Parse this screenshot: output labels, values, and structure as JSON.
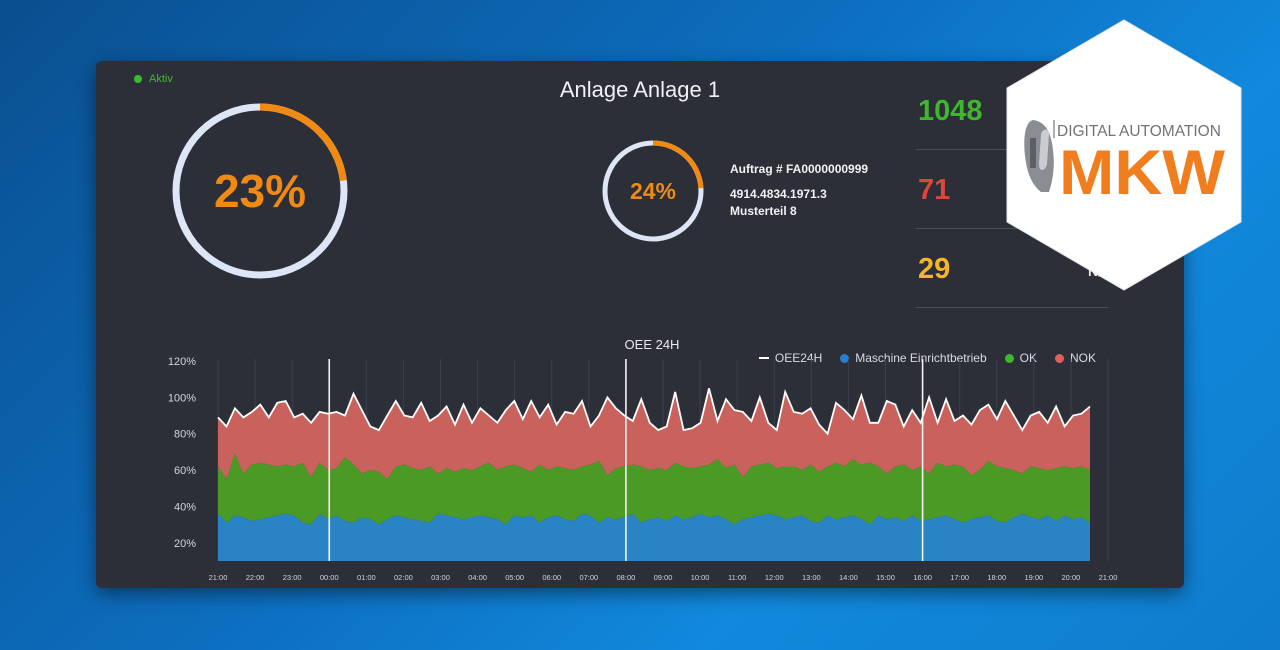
{
  "header": {
    "status_label": "Aktiv",
    "title": "Anlage Anlage 1"
  },
  "gauges": {
    "main": {
      "value": 23,
      "label": "23%"
    },
    "order": {
      "value": 24,
      "label": "24%"
    }
  },
  "order": {
    "number": "Auftrag # FA0000000999",
    "article_no": "4914.4834.1971.3",
    "article_name": "Musterteil 8"
  },
  "counts": [
    {
      "value": "1048",
      "label": "",
      "color": "#3fb62c"
    },
    {
      "value": "71",
      "label": "",
      "color": "#e2443a"
    },
    {
      "value": "29",
      "label": "N/",
      "color": "#f5b626"
    }
  ],
  "logo": {
    "top_text": "DIGITAL AUTOMATION",
    "brand": "MKW"
  },
  "colors": {
    "accent_orange": "#f08a12",
    "gauge_track": "#dde6f6",
    "ok_green": "#4a9a25",
    "nok_red": "#c9625c",
    "blue": "#2a84c4"
  },
  "chart_data": {
    "type": "area",
    "title": "OEE 24H",
    "ylim": [
      10,
      120
    ],
    "y_ticks": [
      "20%",
      "40%",
      "60%",
      "80%",
      "100%",
      "120%"
    ],
    "x_ticks": [
      "21:00",
      "22:00",
      "23:00",
      "00:00",
      "01:00",
      "02:00",
      "03:00",
      "04:00",
      "05:00",
      "06:00",
      "07:00",
      "08:00",
      "09:00",
      "10:00",
      "11:00",
      "12:00",
      "13:00",
      "14:00",
      "15:00",
      "16:00",
      "17:00",
      "18:00",
      "19:00",
      "20:00",
      "21:00"
    ],
    "legend": [
      {
        "name": "OEE24H",
        "color": "#ffffff",
        "shape": "line"
      },
      {
        "name": "Maschine Einrichtbetrieb",
        "color": "#2a7fd4",
        "shape": "dot"
      },
      {
        "name": "OK",
        "color": "#3fb62c",
        "shape": "dot"
      },
      {
        "name": "NOK",
        "color": "#e0605a",
        "shape": "dot"
      }
    ],
    "shift_markers": [
      "00:00",
      "08:00",
      "16:00"
    ],
    "series": [
      {
        "name": "Maschine Einrichtbetrieb",
        "values": [
          36,
          31,
          35,
          34,
          32,
          33,
          34,
          35,
          36,
          35,
          31,
          30,
          36,
          33,
          35,
          32,
          31,
          34,
          33,
          30,
          33,
          35,
          34,
          33,
          32,
          31,
          36,
          35,
          34,
          33,
          34,
          35,
          34,
          33,
          30,
          35,
          34,
          35,
          31,
          34,
          35,
          33,
          32,
          36,
          35,
          31,
          34,
          33,
          34,
          36,
          31,
          33,
          34,
          32,
          35,
          33,
          34,
          36,
          34,
          35,
          33,
          30,
          33,
          34,
          35,
          36,
          35,
          33,
          34,
          35,
          32,
          31,
          35,
          33,
          34,
          35,
          33,
          30,
          35,
          33,
          34,
          32,
          35,
          32,
          33,
          34,
          35,
          33,
          31,
          33,
          34,
          35,
          32,
          31,
          34,
          36,
          34,
          33,
          35,
          32,
          35,
          33,
          34,
          31
        ]
      },
      {
        "name": "OK",
        "values": [
          62,
          55,
          69,
          58,
          63,
          64,
          63,
          62,
          63,
          62,
          64,
          56,
          64,
          60,
          61,
          67,
          63,
          58,
          60,
          59,
          55,
          62,
          63,
          61,
          60,
          62,
          58,
          61,
          59,
          61,
          60,
          62,
          64,
          60,
          62,
          63,
          61,
          59,
          63,
          60,
          62,
          61,
          60,
          62,
          63,
          65,
          57,
          61,
          62,
          63,
          62,
          60,
          61,
          60,
          64,
          62,
          61,
          62,
          63,
          66,
          61,
          63,
          56,
          62,
          63,
          64,
          61,
          62,
          62,
          60,
          63,
          59,
          62,
          64,
          62,
          66,
          63,
          64,
          62,
          58,
          62,
          63,
          60,
          62,
          58,
          64,
          62,
          63,
          62,
          57,
          60,
          65,
          62,
          61,
          60,
          58,
          62,
          61,
          60,
          61,
          62,
          61,
          62,
          60
        ]
      },
      {
        "name": "OEE24H",
        "values": [
          89,
          84,
          94,
          89,
          92,
          96,
          89,
          97,
          98,
          89,
          91,
          86,
          92,
          91,
          92,
          90,
          102,
          93,
          84,
          82,
          90,
          98,
          90,
          89,
          97,
          87,
          90,
          95,
          85,
          96,
          86,
          94,
          90,
          86,
          93,
          98,
          88,
          98,
          89,
          96,
          85,
          92,
          91,
          98,
          84,
          90,
          100,
          94,
          90,
          87,
          99,
          86,
          82,
          84,
          103,
          82,
          83,
          86,
          105,
          87,
          99,
          93,
          92,
          87,
          100,
          86,
          82,
          103,
          92,
          91,
          94,
          85,
          80,
          97,
          93,
          88,
          101,
          86,
          86,
          98,
          96,
          84,
          93,
          86,
          100,
          86,
          99,
          87,
          90,
          85,
          93,
          96,
          88,
          98,
          90,
          82,
          90,
          92,
          86,
          95,
          84,
          90,
          91,
          95
        ]
      }
    ]
  }
}
